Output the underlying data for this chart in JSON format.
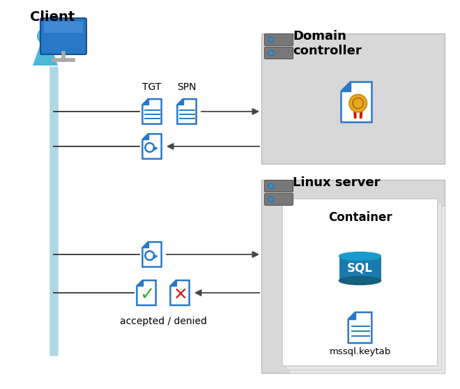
{
  "bg_color": "#ffffff",
  "client_label": "Client",
  "domain_label": "Domain\ncontroller",
  "linux_label": "Linux server",
  "container_label": "Container",
  "tgt_label": "TGT",
  "spn_label": "SPN",
  "accepted_denied_label": "accepted / denied",
  "mssql_label": "mssql.keytab",
  "doc_blue": "#2878c8",
  "doc_fill": "#ffffff",
  "doc_fold_blue": "#3a6fd8",
  "box_fill": "#d8d8d8",
  "box_edge": "#bbbbbb",
  "server_dark": "#787878",
  "server_light": "#a8a8a8",
  "server_dot": "#3a8cc8",
  "arrow_color": "#444444",
  "green_check": "#33aa33",
  "red_x": "#cc2222",
  "cert_gold": "#e8a820",
  "cert_red": "#cc2200",
  "client_light_blue": "#add8e6",
  "sql_top": "#1a9acd",
  "sql_body": "#1a7aad",
  "sql_bottom": "#14607d",
  "line_color": "#333333"
}
